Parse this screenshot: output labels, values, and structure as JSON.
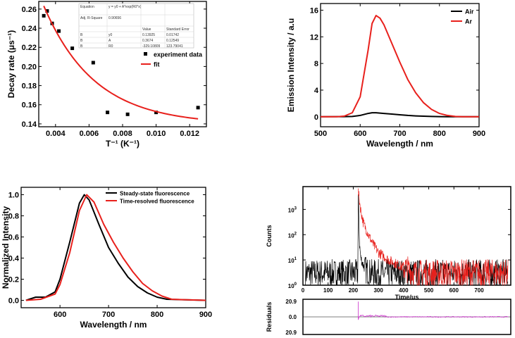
{
  "chart_data": [
    {
      "type": "scatter",
      "id": "decay",
      "xlabel": "T⁻¹ (K⁻¹)",
      "ylabel": "Decay rate (μs⁻¹)",
      "xlim": [
        0.003,
        0.013
      ],
      "ylim": [
        0.137,
        0.268
      ],
      "xticks": [
        0.004,
        0.006,
        0.008,
        0.01,
        0.012
      ],
      "xtick_labels": [
        "0.004",
        "0.006",
        "0.008",
        "0.010",
        "0.012"
      ],
      "yticks": [
        0.14,
        0.16,
        0.18,
        0.2,
        0.22,
        0.24,
        0.26
      ],
      "ytick_labels": [
        "0.14",
        "0.16",
        "0.18",
        "0.20",
        "0.22",
        "0.24",
        "0.26"
      ],
      "series": [
        {
          "name": "experiment data",
          "style": "markers",
          "color": "#000000",
          "x": [
            0.0033,
            0.0035,
            0.0038,
            0.0042,
            0.005,
            0.00625,
            0.0071,
            0.0083,
            0.01,
            0.0125
          ],
          "y": [
            0.253,
            0.258,
            0.245,
            0.237,
            0.219,
            0.204,
            0.152,
            0.15,
            0.152,
            0.157
          ]
        },
        {
          "name": "fit",
          "style": "line",
          "color": "#e8201c",
          "model": "y = y0 + A*exp(R0*x)",
          "params": {
            "y0": 0.13925,
            "A": 0.3674,
            "R0": -329.10809
          },
          "x_range": [
            0.0033,
            0.0125
          ]
        }
      ],
      "legend_position": "upper-right",
      "fit_table": {
        "rows": [
          [
            "Equation",
            "y = y0 + A*exp(R0*x)",
            "",
            ""
          ],
          [
            "Adj. R-Square",
            "0.90656",
            "",
            ""
          ],
          [
            "",
            "",
            "Value",
            "Standard Error"
          ],
          [
            "B",
            "y0",
            "0.13925",
            "0.01742"
          ],
          [
            "B",
            "A",
            "0.3674",
            "0.12549"
          ],
          [
            "B",
            "R0",
            "-329.10809",
            "123.79041"
          ]
        ]
      }
    },
    {
      "type": "line",
      "id": "emission",
      "xlabel": "Wavelength / nm",
      "ylabel": "Emission Intensity / a.u",
      "xlim": [
        500,
        900
      ],
      "ylim": [
        -1.5,
        17
      ],
      "xticks": [
        500,
        600,
        700,
        800,
        900
      ],
      "xtick_labels": [
        "500",
        "600",
        "700",
        "800",
        "900"
      ],
      "yticks": [
        0,
        4,
        8,
        12,
        16
      ],
      "ytick_labels": [
        "0",
        "4",
        "8",
        "12",
        "16"
      ],
      "legend_position": "upper-right",
      "series": [
        {
          "name": "Air",
          "color": "#000000",
          "x": [
            500,
            560,
            580,
            600,
            620,
            630,
            640,
            660,
            680,
            700,
            720,
            740,
            760,
            780,
            800,
            820,
            860,
            900
          ],
          "y": [
            0,
            0.02,
            0.05,
            0.2,
            0.5,
            0.6,
            0.6,
            0.5,
            0.4,
            0.3,
            0.2,
            0.13,
            0.08,
            0.04,
            0.02,
            0.01,
            0,
            0
          ]
        },
        {
          "name": "Ar",
          "color": "#e8201c",
          "x": [
            500,
            540,
            560,
            580,
            600,
            620,
            630,
            640,
            650,
            660,
            680,
            700,
            720,
            740,
            760,
            780,
            800,
            820,
            840,
            860,
            900
          ],
          "y": [
            0,
            0,
            0.1,
            0.6,
            3,
            10,
            14,
            15.2,
            14.8,
            13.8,
            11,
            8.2,
            5.6,
            3.6,
            2.1,
            1.1,
            0.5,
            0.2,
            0.05,
            0,
            0
          ]
        }
      ]
    },
    {
      "type": "line",
      "id": "normalized",
      "xlabel": "Wavelength / nm",
      "ylabel": "Normalized Intensity",
      "xlim": [
        520,
        900
      ],
      "ylim": [
        -0.07,
        1.07
      ],
      "xticks": [
        600,
        700,
        800,
        900
      ],
      "xtick_labels": [
        "600",
        "700",
        "800",
        "900"
      ],
      "yticks": [
        0,
        0.2,
        0.4,
        0.6,
        0.8,
        1.0
      ],
      "ytick_labels": [
        "0.0",
        "0.2",
        "0.4",
        "0.6",
        "0.8",
        "1.0"
      ],
      "legend_position": "upper-right",
      "series": [
        {
          "name": "Steady-state fluorescence",
          "color": "#000000",
          "x": [
            530,
            550,
            570,
            590,
            600,
            620,
            640,
            650,
            660,
            680,
            700,
            720,
            740,
            760,
            780,
            800,
            820,
            900
          ],
          "y": [
            0,
            0.03,
            0.03,
            0.08,
            0.2,
            0.55,
            0.92,
            1,
            0.95,
            0.72,
            0.5,
            0.35,
            0.22,
            0.13,
            0.07,
            0.03,
            0.01,
            0
          ]
        },
        {
          "name": "Time-resolved fluorescence",
          "color": "#e8201c",
          "x": [
            530,
            560,
            590,
            600,
            620,
            640,
            655,
            670,
            690,
            710,
            730,
            750,
            770,
            790,
            810,
            830,
            900
          ],
          "y": [
            0,
            0.01,
            0.06,
            0.15,
            0.45,
            0.85,
            1,
            0.93,
            0.72,
            0.55,
            0.4,
            0.27,
            0.16,
            0.09,
            0.04,
            0.01,
            0
          ]
        }
      ]
    },
    {
      "type": "line",
      "id": "decay-trace",
      "yscale": "log",
      "xlabel": "Time/us",
      "ylabel": "Counts",
      "xlim": [
        0,
        826
      ],
      "ylim": [
        1,
        8000
      ],
      "xticks": [
        0,
        100,
        200,
        300,
        400,
        500,
        600,
        700
      ],
      "xtick_labels": [
        "0",
        "100",
        "200",
        "300",
        "400",
        "500",
        "600",
        "700"
      ],
      "yticks": [
        1,
        10,
        100,
        1000
      ],
      "ytick_labels": [
        "10",
        "10",
        "10",
        "10"
      ],
      "ytick_exponents": [
        "0",
        "1",
        "2",
        "3"
      ],
      "series": [
        {
          "color": "#000000",
          "x": [
            10,
            218,
            220,
            225,
            230,
            240,
            250,
            270,
            815
          ],
          "y": [
            3,
            3,
            3000,
            40,
            12,
            6,
            4,
            3,
            3
          ]
        },
        {
          "color": "#e8201c",
          "x": [
            220,
            230,
            240,
            260,
            280,
            300,
            340,
            400,
            450,
            815
          ],
          "y": [
            5000,
            900,
            300,
            100,
            40,
            20,
            10,
            5,
            3,
            3
          ]
        }
      ],
      "residuals": {
        "ylabel": "Residuals",
        "yticks": [
          20.9,
          0,
          -20.9
        ],
        "ytick_labels": [
          "20.9",
          "0.0",
          "20.9"
        ],
        "color": "#cc33cc"
      }
    }
  ]
}
